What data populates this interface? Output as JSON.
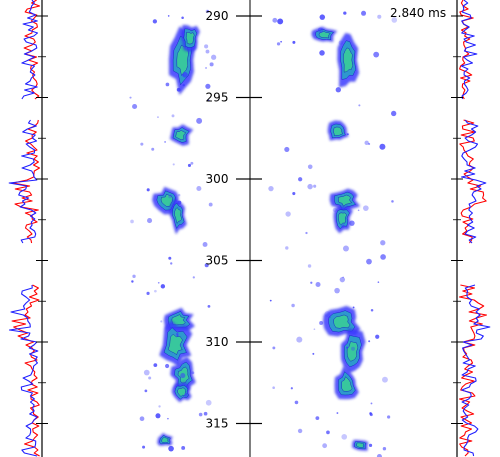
{
  "timestamp": "2.840 ms",
  "axis": {
    "ticks": [
      "290",
      "295",
      "300",
      "305",
      "310",
      "315"
    ]
  },
  "colors": {
    "profile_a": "#ff0000",
    "profile_b": "#1f1fff",
    "spray_outer": "#3a3aff",
    "spray_mid": "#2aa0c8",
    "spray_core": "#39c99a"
  }
}
